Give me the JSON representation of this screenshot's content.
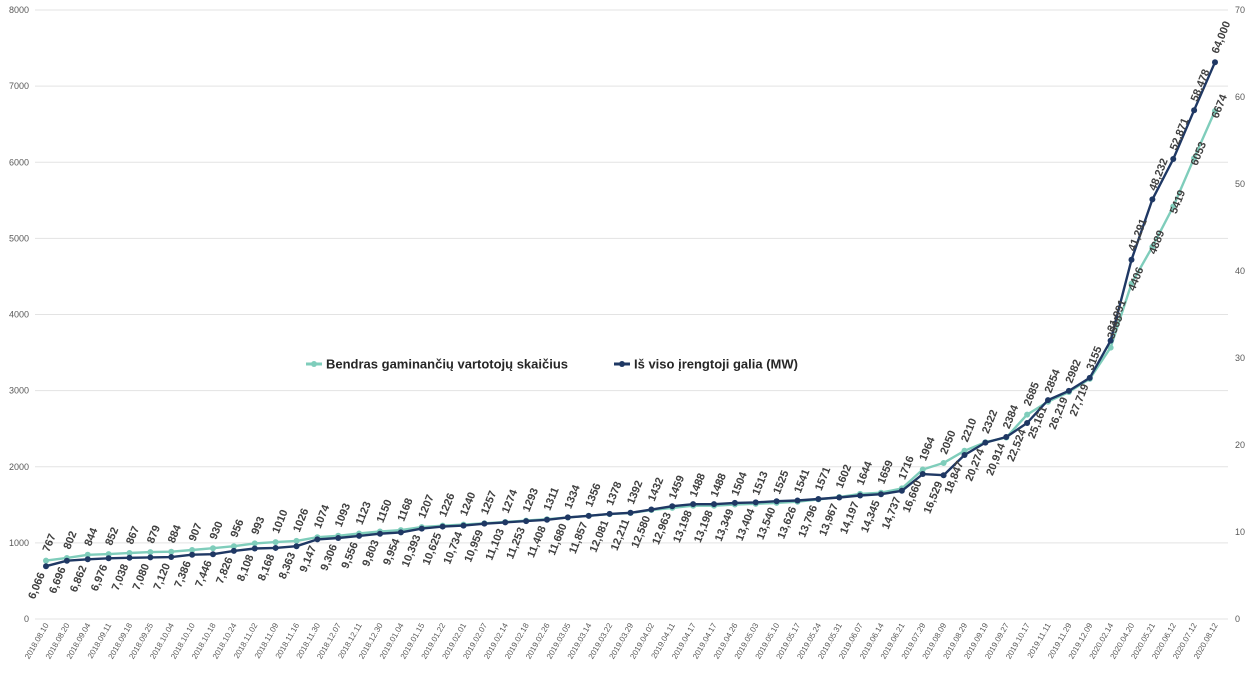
{
  "chart_data": {
    "type": "line",
    "x": [
      "2018.08.10",
      "2018.08.20",
      "2018.09.04",
      "2018.09.11",
      "2018.09.18",
      "2018.09.25",
      "2018.10.04",
      "2018.10.10",
      "2018.10.18",
      "2018.10.24",
      "2018.11.02",
      "2018.11.09",
      "2018.11.16",
      "2018.11.30",
      "2018.12.07",
      "2018.12.11",
      "2018.12.30",
      "2019.01.04",
      "2019.01.15",
      "2019.01.22",
      "2019.02.01",
      "2019.02.07",
      "2019.02.14",
      "2019.02.18",
      "2019.02.26",
      "2019.03.05",
      "2019.03.14",
      "2019.03.22",
      "2019.03.29",
      "2019.04.02",
      "2019.04.11",
      "2019.04.17",
      "2019.04.17",
      "2019.04.26",
      "2019.05.03",
      "2019.05.10",
      "2019.05.17",
      "2019.05.24",
      "2019.05.31",
      "2019.06.07",
      "2019.06.14",
      "2019.06.21",
      "2019.07.29",
      "2019.08.09",
      "2019.08.29",
      "2019.09.19",
      "2019.09.27",
      "2019.10.17",
      "2019.11.11",
      "2019.11.29",
      "2019.12.09",
      "2020.02.14",
      "2020.04.20",
      "2020.05.21",
      "2020.06.12",
      "2020.07.12",
      "2020.08.12"
    ],
    "series": [
      {
        "name": "Bendras gaminančių vartotojų skaičius",
        "axis": "left",
        "color": "#7fcdbb",
        "values": [
          767,
          802,
          844,
          852,
          867,
          879,
          884,
          907,
          930,
          956,
          993,
          1010,
          1026,
          1074,
          1093,
          1123,
          1150,
          1168,
          1207,
          1226,
          1240,
          1257,
          1274,
          1293,
          1311,
          1334,
          1356,
          1378,
          1392,
          1432,
          1459,
          1488,
          1488,
          1504,
          1513,
          1525,
          1541,
          1571,
          1602,
          1644,
          1659,
          1716,
          1964,
          2050,
          2210,
          2322,
          2384,
          2685,
          2854,
          2982,
          3155,
          3565,
          4406,
          4889,
          5419,
          6053,
          6674
        ],
        "labels": [
          "767",
          "802",
          "844",
          "852",
          "867",
          "879",
          "884",
          "907",
          "930",
          "956",
          "993",
          "1010",
          "1026",
          "1074",
          "1093",
          "1123",
          "1150",
          "1168",
          "1207",
          "1226",
          "1240",
          "1257",
          "1274",
          "1293",
          "1311",
          "1334",
          "1356",
          "1378",
          "1392",
          "1432",
          "1459",
          "1488",
          "1488",
          "1504",
          "1513",
          "1525",
          "1541",
          "1571",
          "1602",
          "1644",
          "1659",
          "1716",
          "1964",
          "2050",
          "2210",
          "2322",
          "2384",
          "2685",
          "2854",
          "2982",
          "3155",
          "3565",
          "4406",
          "4889",
          "5419",
          "6053",
          "6674"
        ]
      },
      {
        "name": "Iš viso įrengtoji galia (MW)",
        "axis": "right",
        "color": "#1f3864",
        "values": [
          6.066,
          6.696,
          6.862,
          6.976,
          7.038,
          7.08,
          7.12,
          7.386,
          7.446,
          7.826,
          8.108,
          8.168,
          8.363,
          9.147,
          9.306,
          9.556,
          9.803,
          9.954,
          10.393,
          10.625,
          10.734,
          10.959,
          11.103,
          11.253,
          11.408,
          11.68,
          11.857,
          12.081,
          12.211,
          12.58,
          12.963,
          13.198,
          13.198,
          13.349,
          13.404,
          13.54,
          13.626,
          13.796,
          13.967,
          14.197,
          14.345,
          14.737,
          16.66,
          16.529,
          18.847,
          20.274,
          20.914,
          22.524,
          25.161,
          26.219,
          27.719,
          31.991,
          41.291,
          48.232,
          52.871,
          58.478,
          64.0
        ],
        "labels": [
          "6,066",
          "6,696",
          "6,862",
          "6,976",
          "7,038",
          "7,080",
          "7,120",
          "7,386",
          "7,446",
          "7,826",
          "8,108",
          "8,168",
          "8,363",
          "9,147",
          "9,306",
          "9,556",
          "9,803",
          "9,954",
          "10,393",
          "10,625",
          "10,734",
          "10,959",
          "11,103",
          "11,253",
          "11,408",
          "11,680",
          "11,857",
          "12,081",
          "12,211",
          "12,580",
          "12,963",
          "13,198",
          "13,198",
          "13,349",
          "13,404",
          "13,540",
          "13,626",
          "13,796",
          "13,967",
          "14,197",
          "14,345",
          "14,737",
          "16,660",
          "16,529",
          "18,847",
          "20,274",
          "20,914",
          "22,524",
          "25,161",
          "26,219",
          "27,719",
          "31,991",
          "41,291",
          "48,232",
          "52,871",
          "58,478",
          "64,000"
        ]
      }
    ],
    "y_left": {
      "ylim": [
        0,
        8000
      ],
      "ticks": [
        "0",
        "1000",
        "2000",
        "3000",
        "4000",
        "5000",
        "6000",
        "7000",
        "8000"
      ]
    },
    "y_right": {
      "ylim": [
        0,
        70
      ],
      "ticks": [
        "0",
        "10",
        "20",
        "30",
        "40",
        "50",
        "60",
        "70"
      ]
    },
    "grid": true,
    "legend_position": "center"
  }
}
